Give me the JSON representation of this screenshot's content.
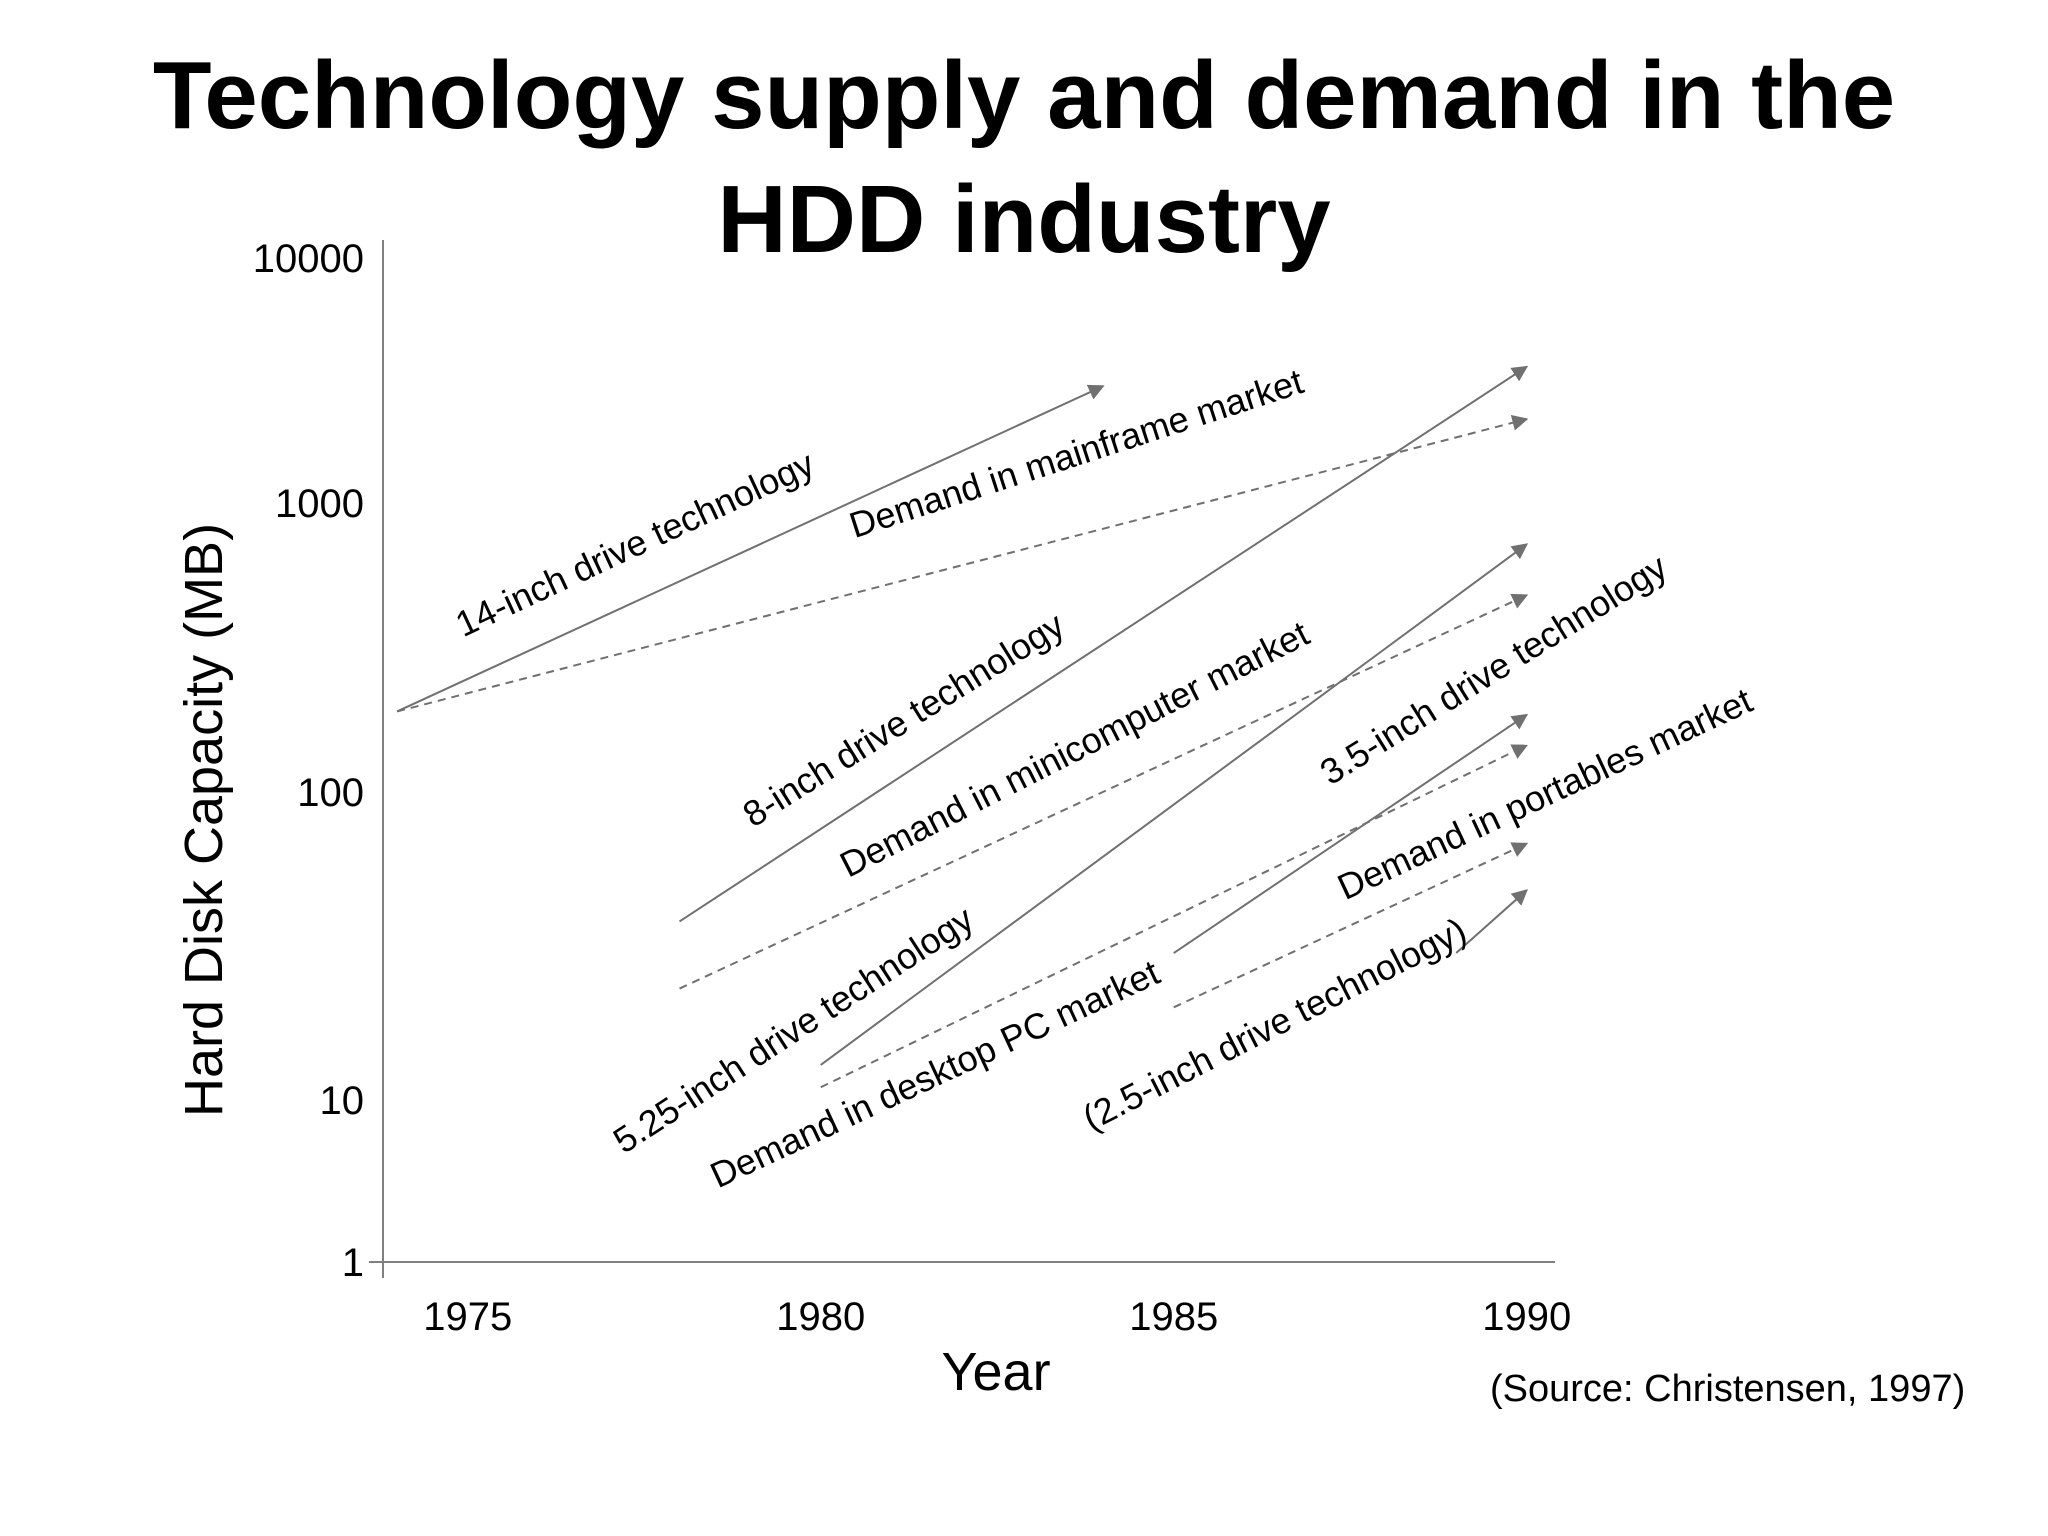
{
  "chart_data": {
    "type": "line",
    "title": [
      "Technology supply and demand in the",
      "HDD industry"
    ],
    "xlabel": "Year",
    "ylabel": "Hard Disk Capacity (MB)",
    "yscale": "log",
    "xlim": [
      1973.8,
      1990.4
    ],
    "ylim": [
      1,
      10000
    ],
    "x_ticks": [
      1975,
      1980,
      1985,
      1990
    ],
    "y_ticks": [
      1,
      10,
      100,
      1000,
      10000
    ],
    "grid": false,
    "series": [
      {
        "name": "14-inch drive technology",
        "style": "solid",
        "x": [
          1974,
          1984
        ],
        "y": [
          190,
          3000
        ]
      },
      {
        "name": "Demand in mainframe market",
        "style": "dashed",
        "x": [
          1974,
          1990
        ],
        "y": [
          190,
          2200
        ]
      },
      {
        "name": "8-inch drive technology",
        "style": "solid",
        "x": [
          1978,
          1990
        ],
        "y": [
          38,
          3600
        ]
      },
      {
        "name": "Demand in minicomputer market",
        "style": "dashed",
        "x": [
          1978,
          1990
        ],
        "y": [
          23,
          480
        ]
      },
      {
        "name": "5.25-inch drive technology",
        "style": "solid",
        "x": [
          1980,
          1990
        ],
        "y": [
          13,
          720
        ]
      },
      {
        "name": "Demand in desktop PC market",
        "style": "dashed",
        "x": [
          1980,
          1990
        ],
        "y": [
          11,
          145
        ]
      },
      {
        "name": "3.5-inch drive technology",
        "style": "solid",
        "x": [
          1985,
          1990
        ],
        "y": [
          30,
          185
        ]
      },
      {
        "name": "Demand in portables market",
        "style": "dashed",
        "x": [
          1985,
          1990
        ],
        "y": [
          20,
          68
        ]
      },
      {
        "name": "(2.5-inch drive technology)",
        "style": "solid",
        "x": [
          1989,
          1990
        ],
        "y": [
          30,
          48
        ]
      }
    ],
    "source": "(Source: Christensen, 1997)"
  }
}
